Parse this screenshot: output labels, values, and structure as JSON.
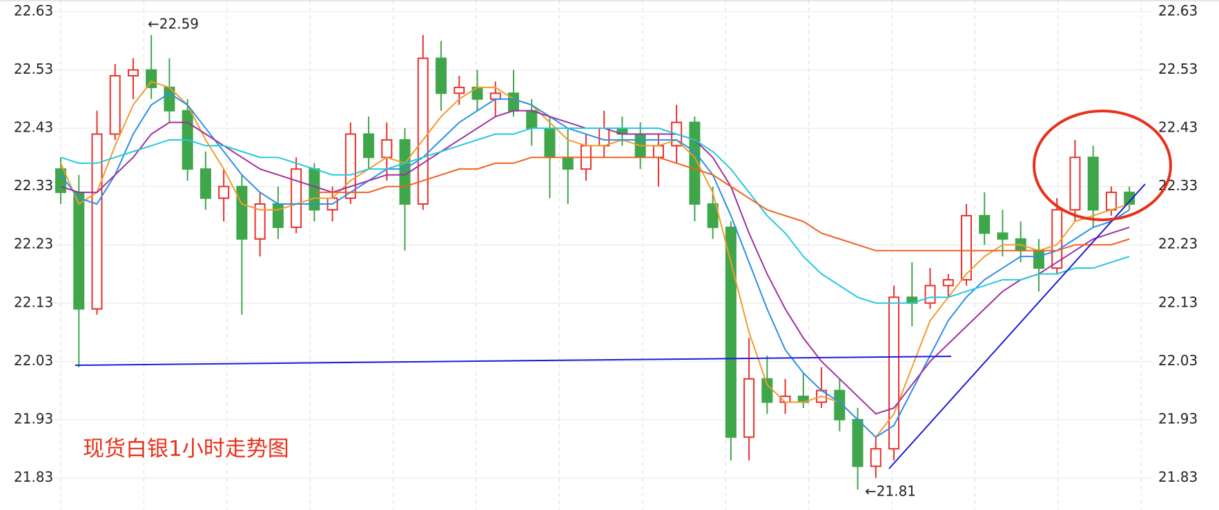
{
  "chart_data": {
    "type": "candlestick",
    "title": "现货白银1小时走势图",
    "annotations": [
      "←22.59",
      "←21.81"
    ],
    "up_color": "#e8302c",
    "down_color": "#3fa64a",
    "ylim": [
      21.775,
      22.65
    ],
    "yticks": [
      22.63,
      22.53,
      22.43,
      22.33,
      22.23,
      22.13,
      22.03,
      21.93,
      21.83
    ],
    "grid": true,
    "open": [
      22.36,
      22.32,
      22.12,
      22.42,
      22.52,
      22.53,
      22.5,
      22.46,
      22.36,
      22.31,
      22.33,
      22.24,
      22.3,
      22.26,
      22.36,
      22.29,
      22.31,
      22.42,
      22.38,
      22.41,
      22.3,
      22.55,
      22.49,
      22.5,
      22.48,
      22.49,
      22.46,
      22.43,
      22.38,
      22.36,
      22.4,
      22.43,
      22.42,
      22.38,
      22.4,
      22.44,
      22.3,
      22.26,
      21.9,
      22.0,
      21.96,
      21.97,
      21.96,
      21.98,
      21.93,
      21.85,
      21.88,
      22.14,
      22.13,
      22.16,
      22.17,
      22.28,
      22.25,
      22.24,
      22.22,
      22.19,
      22.29,
      22.38,
      22.29,
      22.32
    ],
    "high": [
      22.38,
      22.35,
      22.46,
      22.54,
      22.55,
      22.59,
      22.55,
      22.48,
      22.39,
      22.36,
      22.35,
      22.32,
      22.33,
      22.38,
      22.37,
      22.33,
      22.44,
      22.45,
      22.44,
      22.43,
      22.59,
      22.58,
      22.52,
      22.53,
      22.51,
      22.53,
      22.48,
      22.45,
      22.43,
      22.42,
      22.46,
      22.45,
      22.44,
      22.42,
      22.47,
      22.45,
      22.33,
      22.27,
      22.07,
      22.04,
      22.0,
      22.01,
      22.02,
      22.0,
      21.95,
      21.9,
      22.16,
      22.2,
      22.19,
      22.18,
      22.3,
      22.32,
      22.29,
      22.27,
      22.24,
      22.31,
      22.41,
      22.4,
      22.33,
      22.33
    ],
    "low": [
      22.3,
      22.02,
      22.11,
      22.41,
      22.48,
      22.48,
      22.44,
      22.34,
      22.29,
      22.27,
      22.11,
      22.21,
      22.24,
      22.25,
      22.27,
      22.27,
      22.3,
      22.36,
      22.34,
      22.22,
      22.29,
      22.46,
      22.47,
      22.46,
      22.45,
      22.45,
      22.4,
      22.31,
      22.3,
      22.34,
      22.38,
      22.4,
      22.36,
      22.33,
      22.37,
      22.27,
      22.24,
      21.86,
      21.86,
      21.94,
      21.94,
      21.95,
      21.95,
      21.91,
      21.81,
      21.83,
      21.86,
      22.09,
      22.12,
      22.14,
      22.16,
      22.23,
      22.21,
      22.2,
      22.15,
      22.18,
      22.27,
      22.26,
      22.28,
      22.29
    ],
    "close": [
      22.32,
      22.12,
      22.42,
      22.52,
      22.53,
      22.5,
      22.46,
      22.36,
      22.31,
      22.33,
      22.24,
      22.3,
      22.26,
      22.36,
      22.29,
      22.31,
      22.42,
      22.38,
      22.41,
      22.3,
      22.55,
      22.49,
      22.5,
      22.48,
      22.49,
      22.46,
      22.43,
      22.38,
      22.36,
      22.4,
      22.43,
      22.42,
      22.38,
      22.4,
      22.44,
      22.3,
      22.26,
      21.9,
      22.0,
      21.96,
      21.97,
      21.96,
      21.98,
      21.93,
      21.85,
      21.88,
      22.14,
      22.13,
      22.16,
      22.17,
      22.28,
      22.25,
      22.24,
      22.22,
      22.19,
      22.29,
      22.38,
      22.29,
      22.32,
      22.3
    ],
    "series": [
      {
        "color": "#f29a2e",
        "values": [
          22.37,
          22.3,
          22.32,
          22.4,
          22.47,
          22.51,
          22.5,
          22.47,
          22.41,
          22.36,
          22.3,
          22.29,
          22.29,
          22.3,
          22.31,
          22.31,
          22.34,
          22.36,
          22.38,
          22.37,
          22.41,
          22.45,
          22.48,
          22.5,
          22.5,
          22.48,
          22.47,
          22.44,
          22.41,
          22.4,
          22.4,
          22.41,
          22.4,
          22.4,
          22.41,
          22.38,
          22.32,
          22.2,
          22.08,
          21.99,
          21.96,
          21.96,
          21.97,
          21.96,
          21.93,
          21.9,
          21.94,
          22.02,
          22.1,
          22.14,
          22.18,
          22.21,
          22.23,
          22.23,
          22.22,
          22.23,
          22.27,
          22.28,
          22.29,
          22.3
        ]
      },
      {
        "color": "#2a8fe8",
        "values": [
          22.35,
          22.31,
          22.3,
          22.35,
          22.42,
          22.47,
          22.49,
          22.47,
          22.43,
          22.39,
          22.35,
          22.32,
          22.3,
          22.3,
          22.3,
          22.3,
          22.32,
          22.34,
          22.36,
          22.36,
          22.38,
          22.41,
          22.44,
          22.46,
          22.48,
          22.48,
          22.47,
          22.45,
          22.43,
          22.42,
          22.41,
          22.41,
          22.41,
          22.41,
          22.41,
          22.39,
          22.35,
          22.28,
          22.2,
          22.12,
          22.05,
          22.01,
          21.98,
          21.96,
          21.93,
          21.9,
          21.92,
          21.98,
          22.04,
          22.1,
          22.14,
          22.17,
          22.19,
          22.21,
          22.21,
          22.22,
          22.24,
          22.26,
          22.27,
          22.29
        ]
      },
      {
        "color": "#a0309c",
        "values": [
          22.33,
          22.32,
          22.32,
          22.35,
          22.38,
          22.42,
          22.44,
          22.44,
          22.42,
          22.4,
          22.38,
          22.36,
          22.35,
          22.34,
          22.33,
          22.32,
          22.33,
          22.34,
          22.35,
          22.35,
          22.37,
          22.39,
          22.41,
          22.43,
          22.45,
          22.46,
          22.46,
          22.45,
          22.44,
          22.43,
          22.43,
          22.42,
          22.42,
          22.42,
          22.42,
          22.41,
          22.38,
          22.33,
          22.25,
          22.18,
          22.12,
          22.07,
          22.03,
          22.0,
          21.97,
          21.94,
          21.95,
          21.99,
          22.03,
          22.06,
          22.09,
          22.12,
          22.15,
          22.17,
          22.18,
          22.2,
          22.22,
          22.24,
          22.25,
          22.26
        ]
      },
      {
        "color": "#22c8e0",
        "values": [
          22.38,
          22.37,
          22.37,
          22.38,
          22.39,
          22.4,
          22.41,
          22.41,
          22.4,
          22.4,
          22.39,
          22.38,
          22.38,
          22.37,
          22.36,
          22.35,
          22.35,
          22.36,
          22.36,
          22.37,
          22.38,
          22.39,
          22.4,
          22.41,
          22.42,
          22.42,
          22.43,
          22.43,
          22.43,
          22.43,
          22.43,
          22.43,
          22.43,
          22.43,
          22.42,
          22.41,
          22.39,
          22.36,
          22.32,
          22.28,
          22.25,
          22.21,
          22.18,
          22.16,
          22.14,
          22.13,
          22.13,
          22.13,
          22.14,
          22.14,
          22.15,
          22.16,
          22.17,
          22.17,
          22.18,
          22.18,
          22.19,
          22.19,
          22.2,
          22.21
        ]
      },
      {
        "color": "#f0601e",
        "values": [
          null,
          null,
          null,
          null,
          null,
          null,
          null,
          null,
          null,
          null,
          null,
          null,
          null,
          null,
          22.32,
          22.32,
          22.32,
          22.32,
          22.33,
          22.33,
          22.34,
          22.35,
          22.36,
          22.36,
          22.37,
          22.37,
          22.38,
          22.38,
          22.38,
          22.38,
          22.38,
          22.38,
          22.38,
          22.38,
          22.37,
          22.36,
          22.35,
          22.33,
          22.31,
          22.29,
          22.28,
          22.27,
          22.25,
          22.24,
          22.23,
          22.22,
          22.22,
          22.22,
          22.22,
          22.22,
          22.22,
          22.22,
          22.22,
          22.22,
          22.22,
          22.22,
          22.23,
          22.23,
          22.23,
          22.24
        ]
      }
    ]
  }
}
